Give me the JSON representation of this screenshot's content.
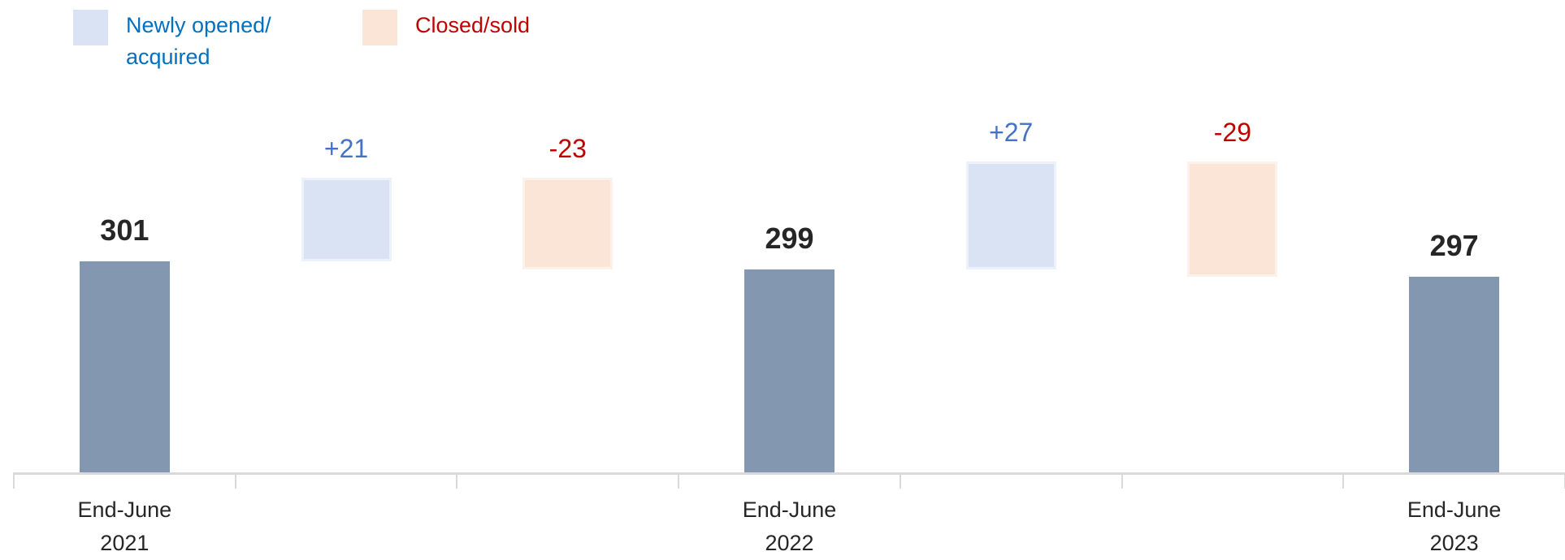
{
  "chart_data": {
    "type": "waterfall",
    "categories": [
      "End-June 2021",
      null,
      null,
      "End-June 2022",
      null,
      null,
      "End-June 2023"
    ],
    "values": [
      301,
      21,
      -23,
      299,
      27,
      -29,
      297
    ],
    "value_labels": [
      "301",
      "+21",
      "-23",
      "299",
      "+27",
      "-29",
      "297"
    ],
    "measure": [
      "absolute",
      "relative",
      "relative",
      "absolute",
      "relative",
      "relative",
      "absolute"
    ],
    "colors": [
      "#8497b0",
      "#dae3f3",
      "#fbe5d6",
      "#8497b0",
      "#dae3f3",
      "#fbe5d6",
      "#8497b0"
    ],
    "label_colors": [
      "#262626",
      "#4472c4",
      "#c00000",
      "#262626",
      "#4472c4",
      "#c00000",
      "#262626"
    ],
    "legend": [
      {
        "name": "Newly opened/ acquired",
        "color": "#dae3f3",
        "text_color": "#0070c0"
      },
      {
        "name": "Closed/sold",
        "color": "#fbe5d6",
        "text_color": "#c00000"
      }
    ],
    "ylim": [
      248,
      360
    ]
  }
}
